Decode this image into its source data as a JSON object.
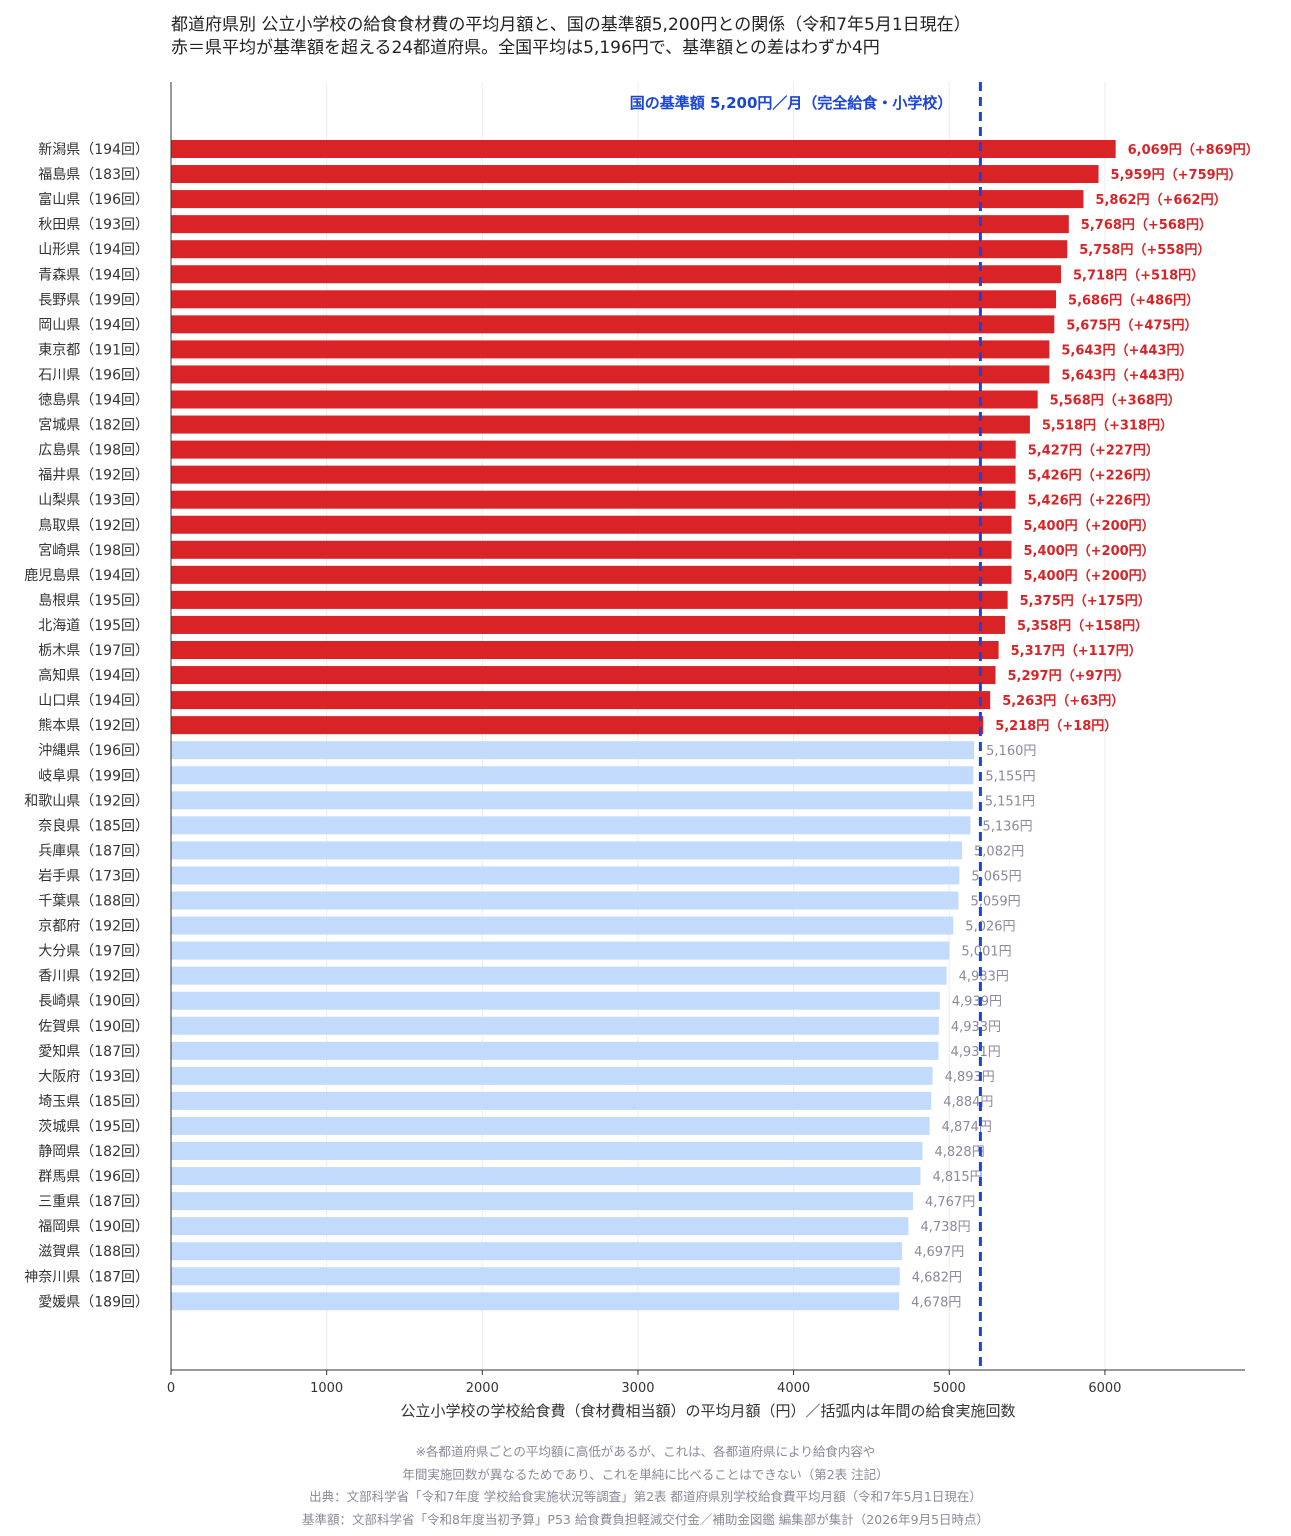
{
  "title": {
    "line1": "都道府県別 公立小学校の給食食材費の平均月額と、国の基準額5,200円との関係（令和7年5月1日現在）",
    "line2": "赤＝県平均が基準額を超える24都道府県。全国平均は5,196円で、基準額との差はわずか4円"
  },
  "notes": [
    "※各都道府県ごとの平均額に高低があるが、これは、各都道府県により給食内容や",
    "年間実施回数が異なるためであり、これを単純に比べることはできない（第2表 注記）",
    "出典：文部科学省「令和7年度 学校給食実施状況等調査」第2表 都道府県別学校給食費平均月額（令和7年5月1日現在）",
    "基準額：文部科学省「令和8年度当初予算」P53 給食費負担軽減交付金／補助金図鑑 編集部が集計（2026年9月5日時点）"
  ],
  "chart_data": {
    "type": "bar",
    "orientation": "horizontal",
    "xlabel": "公立小学校の学校給食費（食材費相当額）の平均月額（円）／括弧内は年間の給食実施回数",
    "xlim": [
      0,
      6900
    ],
    "xticks": [
      "0",
      "1000",
      "2000",
      "3000",
      "4000",
      "5000",
      "6000"
    ],
    "xtick_values": [
      0,
      1000,
      2000,
      3000,
      4000,
      5000,
      6000
    ],
    "grid": "vertical",
    "reference_line": {
      "value": 5200,
      "label": "国の基準額 5,200円／月（完全給食・小学校）",
      "color": "#1a44d6"
    },
    "colors": {
      "above": "#d92327",
      "below": "#c2dafc",
      "above_label": "#d92327",
      "below_label": "#8a8a9e"
    },
    "categories": [
      "新潟県（194回）",
      "福島県（183回）",
      "富山県（196回）",
      "秋田県（193回）",
      "山形県（194回）",
      "青森県（194回）",
      "長野県（199回）",
      "岡山県（194回）",
      "東京都（191回）",
      "石川県（196回）",
      "徳島県（194回）",
      "宮城県（182回）",
      "広島県（198回）",
      "福井県（192回）",
      "山梨県（193回）",
      "鳥取県（192回）",
      "宮崎県（198回）",
      "鹿児島県（194回）",
      "島根県（195回）",
      "北海道（195回）",
      "栃木県（197回）",
      "高知県（194回）",
      "山口県（194回）",
      "熊本県（192回）",
      "沖縄県（196回）",
      "岐阜県（199回）",
      "和歌山県（192回）",
      "奈良県（185回）",
      "兵庫県（187回）",
      "岩手県（173回）",
      "千葉県（188回）",
      "京都府（192回）",
      "大分県（197回）",
      "香川県（192回）",
      "長崎県（190回）",
      "佐賀県（190回）",
      "愛知県（187回）",
      "大阪府（193回）",
      "埼玉県（185回）",
      "茨城県（195回）",
      "静岡県（182回）",
      "群馬県（196回）",
      "三重県（187回）",
      "福岡県（190回）",
      "滋賀県（188回）",
      "神奈川県（187回）",
      "愛媛県（189回）"
    ],
    "values": [
      6069,
      5959,
      5862,
      5768,
      5758,
      5718,
      5686,
      5675,
      5643,
      5643,
      5568,
      5518,
      5427,
      5426,
      5426,
      5400,
      5400,
      5400,
      5375,
      5358,
      5317,
      5297,
      5263,
      5218,
      5160,
      5155,
      5151,
      5136,
      5082,
      5065,
      5059,
      5026,
      5001,
      4983,
      4939,
      4933,
      4931,
      4893,
      4884,
      4874,
      4828,
      4815,
      4767,
      4738,
      4697,
      4682,
      4678
    ],
    "data_labels": [
      "6,069円（+869円）",
      "5,959円（+759円）",
      "5,862円（+662円）",
      "5,768円（+568円）",
      "5,758円（+558円）",
      "5,718円（+518円）",
      "5,686円（+486円）",
      "5,675円（+475円）",
      "5,643円（+443円）",
      "5,643円（+443円）",
      "5,568円（+368円）",
      "5,518円（+318円）",
      "5,427円（+227円）",
      "5,426円（+226円）",
      "5,426円（+226円）",
      "5,400円（+200円）",
      "5,400円（+200円）",
      "5,400円（+200円）",
      "5,375円（+175円）",
      "5,358円（+158円）",
      "5,317円（+117円）",
      "5,297円（+97円）",
      "5,263円（+63円）",
      "5,218円（+18円）",
      "5,160円",
      "5,155円",
      "5,151円",
      "5,136円",
      "5,082円",
      "5,065円",
      "5,059円",
      "5,026円",
      "5,001円",
      "4,983円",
      "4,939円",
      "4,933円",
      "4,931円",
      "4,893円",
      "4,884円",
      "4,874円",
      "4,828円",
      "4,815円",
      "4,767円",
      "4,738円",
      "4,697円",
      "4,682円",
      "4,678円"
    ]
  }
}
